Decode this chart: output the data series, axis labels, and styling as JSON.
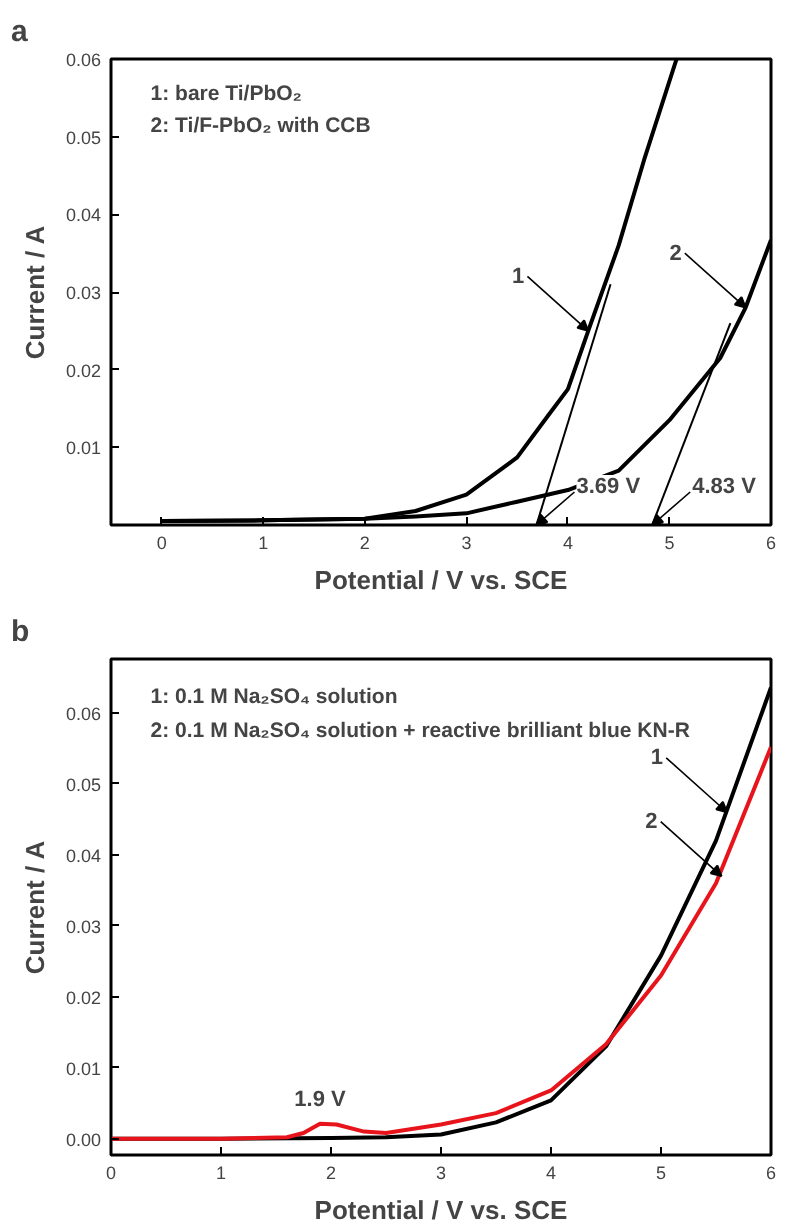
{
  "chart_data": [
    {
      "type": "line",
      "title": "a",
      "xlabel": "Potential / V vs. SCE",
      "ylabel": "Current / A",
      "xlim": [
        -0.5,
        6
      ],
      "ylim": [
        0,
        0.06
      ],
      "xticks": [
        0,
        1,
        2,
        3,
        4,
        5,
        6
      ],
      "yticks": [
        0.01,
        0.02,
        0.03,
        0.04,
        0.05,
        0.06
      ],
      "series": [
        {
          "color": "#000000",
          "x": [
            0,
            1,
            2,
            2.5,
            3,
            3.5,
            3.8,
            4,
            4.2,
            4.5,
            4.75,
            5.07
          ],
          "values": [
            0.0005,
            0.0006,
            0.0008,
            0.0018,
            0.0039,
            0.0087,
            0.014,
            0.0175,
            0.025,
            0.036,
            0.047,
            0.06
          ]
        },
        {
          "color": "#000000",
          "x": [
            0,
            1,
            2,
            2.5,
            3,
            3.5,
            4,
            4.5,
            5,
            5.5,
            5.75,
            6
          ],
          "values": [
            0.0005,
            0.0006,
            0.0008,
            0.0011,
            0.0015,
            0.003,
            0.0045,
            0.007,
            0.0135,
            0.0215,
            0.028,
            0.0367
          ]
        },
        {
          "color": "#000000",
          "x": [
            3.69,
            4.42
          ],
          "values": [
            0,
            0.031
          ]
        },
        {
          "color": "#000000",
          "x": [
            4.83,
            5.6
          ],
          "values": [
            0,
            0.026
          ]
        }
      ],
      "annotations": [
        "1: bare Ti/PbO₂",
        "2: Ti/F-PbO₂ with CCB",
        {
          "text": "1",
          "x": 4.2,
          "y": 0.025
        },
        {
          "text": "2",
          "x": 5.75,
          "y": 0.028
        },
        {
          "text": "3.69 V",
          "x": 3.69,
          "y": 0
        },
        {
          "text": "4.83 V",
          "x": 4.83,
          "y": 0
        }
      ]
    },
    {
      "type": "line",
      "title": "b",
      "xlabel": "Potential / V vs. SCE",
      "ylabel": "Current / A",
      "xlim": [
        0,
        6
      ],
      "ylim": [
        -0.0023,
        0.0676
      ],
      "xticks": [
        0,
        1,
        2,
        3,
        4,
        5,
        6
      ],
      "yticks": [
        {
          "value": 0,
          "label": "0.00"
        },
        {
          "value": 0.01,
          "label": "0.01"
        },
        {
          "value": 0.02,
          "label": "0.02"
        },
        {
          "value": 0.03,
          "label": "0.03"
        },
        {
          "value": 0.04,
          "label": "0.04"
        },
        {
          "value": 0.05,
          "label": "0.05"
        },
        {
          "value": 0.06,
          "label": "0.06"
        }
      ],
      "series": [
        {
          "color": "#000000",
          "x": [
            0,
            1,
            2,
            2.5,
            3,
            3.5,
            4,
            4.5,
            5,
            5.5,
            6
          ],
          "values": [
            0,
            0,
            0.0001,
            0.0002,
            0.0006,
            0.0023,
            0.0054,
            0.013,
            0.0258,
            0.042,
            0.0636
          ]
        },
        {
          "color": "#e8141c",
          "x": [
            0,
            1,
            1.6,
            1.75,
            1.9,
            2.05,
            2.3,
            2.5,
            3,
            3.5,
            4,
            4.5,
            5,
            5.5,
            6
          ],
          "values": [
            0,
            0,
            0.0002,
            0.0008,
            0.0021,
            0.002,
            0.001,
            0.0008,
            0.002,
            0.0036,
            0.0068,
            0.0133,
            0.023,
            0.036,
            0.0552
          ]
        }
      ],
      "annotations": [
        "1: 0.1 M Na₂SO₄ solution",
        "2: 0.1 M Na₂SO₄ solution + reactive brilliant blue KN-R",
        {
          "text": "1",
          "x": 5.6,
          "y": 0.046
        },
        {
          "text": "2",
          "x": 5.55,
          "y": 0.037
        },
        {
          "text": "1.9 V",
          "x": 1.9,
          "y": 0.0021
        }
      ]
    }
  ]
}
